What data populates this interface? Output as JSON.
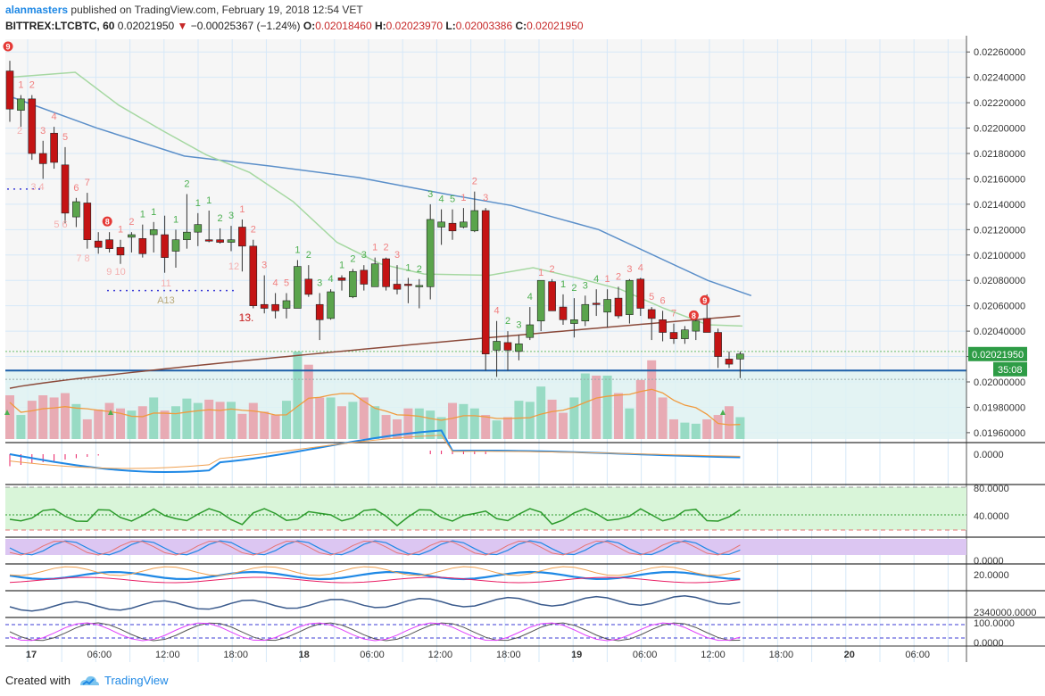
{
  "header": {
    "user": "alanmasters",
    "published_text": "published on TradingView.com, February 19, 2018 12:54 VET",
    "symbol": "BITTREX:LTCBTC, 60",
    "last": "0.02021950",
    "change": "−0.00025367 (−1.24%)",
    "o_label": "O:",
    "o_value": "0.02018460",
    "h_label": "H:",
    "h_value": "0.02023970",
    "l_label": "L:",
    "l_value": "0.02003386",
    "c_label": "C:",
    "c_value": "0.02021950"
  },
  "footer": {
    "created_with": "Created with",
    "brand": "TradingView"
  },
  "colors": {
    "up": "#4caf50",
    "down": "#d32f2f",
    "grid": "#d6e8f8",
    "accent": "#1e88e5",
    "price_badge": "#2e9c46"
  },
  "chart_data": {
    "type": "candlestick",
    "price_axis_ticks": [
      "0.02260000",
      "0.02240000",
      "0.02220000",
      "0.02200000",
      "0.02180000",
      "0.02160000",
      "0.02140000",
      "0.02120000",
      "0.02100000",
      "0.02080000",
      "0.02060000",
      "0.02040000",
      "0.02020000",
      "0.02000000",
      "0.01980000",
      "0.01960000"
    ],
    "y_range": [
      0.01955,
      0.0227
    ],
    "time_axis_ticks": [
      "17",
      "06:00",
      "12:00",
      "18:00",
      "18",
      "06:00",
      "12:00",
      "18:00",
      "19",
      "06:00",
      "12:00",
      "18:00",
      "20",
      "06:00"
    ],
    "current_price_label": "0.02021950",
    "countdown_label": "35:08",
    "support_level": 0.02009,
    "ohlc": [
      [
        0.02245,
        0.02253,
        0.02205,
        0.02215
      ],
      [
        0.02214,
        0.02226,
        0.02201,
        0.02223
      ],
      [
        0.02223,
        0.02226,
        0.02175,
        0.0218
      ],
      [
        0.0218,
        0.0219,
        0.0216,
        0.02172
      ],
      [
        0.02196,
        0.02201,
        0.02168,
        0.02173
      ],
      [
        0.02171,
        0.02185,
        0.02125,
        0.02133
      ],
      [
        0.0213,
        0.02145,
        0.02122,
        0.02142
      ],
      [
        0.02141,
        0.02149,
        0.02105,
        0.02112
      ],
      [
        0.02111,
        0.02118,
        0.02101,
        0.02106
      ],
      [
        0.02112,
        0.02118,
        0.02102,
        0.02105
      ],
      [
        0.02106,
        0.02112,
        0.02093,
        0.021
      ],
      [
        0.02114,
        0.02118,
        0.02102,
        0.02116
      ],
      [
        0.02113,
        0.02124,
        0.02098,
        0.02101
      ],
      [
        0.02116,
        0.02126,
        0.02102,
        0.0212
      ],
      [
        0.02116,
        0.02131,
        0.02086,
        0.02098
      ],
      [
        0.02103,
        0.0212,
        0.0209,
        0.02112
      ],
      [
        0.02112,
        0.02148,
        0.02105,
        0.02118
      ],
      [
        0.02118,
        0.02133,
        0.02107,
        0.02124
      ],
      [
        0.02112,
        0.02135,
        0.0211,
        0.02111
      ],
      [
        0.02112,
        0.02121,
        0.02109,
        0.0211
      ],
      [
        0.0211,
        0.02123,
        0.02103,
        0.02112
      ],
      [
        0.02122,
        0.02128,
        0.02087,
        0.02107
      ],
      [
        0.02107,
        0.02112,
        0.02058,
        0.0206
      ],
      [
        0.02061,
        0.02084,
        0.02054,
        0.02058
      ],
      [
        0.02061,
        0.0207,
        0.0205,
        0.02056
      ],
      [
        0.02058,
        0.0207,
        0.0205,
        0.02064
      ],
      [
        0.02058,
        0.02096,
        0.02058,
        0.02091
      ],
      [
        0.02081,
        0.02092,
        0.02067,
        0.02069
      ],
      [
        0.02061,
        0.0207,
        0.02033,
        0.02049
      ],
      [
        0.0205,
        0.02073,
        0.02049,
        0.02071
      ],
      [
        0.02082,
        0.02084,
        0.02072,
        0.0208
      ],
      [
        0.02067,
        0.02089,
        0.02066,
        0.02087
      ],
      [
        0.02088,
        0.02092,
        0.02072,
        0.02077
      ],
      [
        0.02075,
        0.02098,
        0.02075,
        0.02093
      ],
      [
        0.02097,
        0.02098,
        0.02072,
        0.02075
      ],
      [
        0.02077,
        0.02092,
        0.02069,
        0.02073
      ],
      [
        0.02077,
        0.02082,
        0.02062,
        0.02076
      ],
      [
        0.02075,
        0.02081,
        0.02058,
        0.02076
      ],
      [
        0.02075,
        0.0214,
        0.02065,
        0.02128
      ],
      [
        0.02122,
        0.02136,
        0.02108,
        0.02126
      ],
      [
        0.02125,
        0.02136,
        0.02112,
        0.02119
      ],
      [
        0.02122,
        0.02137,
        0.02121,
        0.02126
      ],
      [
        0.02119,
        0.0215,
        0.02118,
        0.02135
      ],
      [
        0.02135,
        0.02137,
        0.02009,
        0.02022
      ],
      [
        0.02025,
        0.02048,
        0.02004,
        0.02032
      ],
      [
        0.02031,
        0.0204,
        0.02009,
        0.02025
      ],
      [
        0.02024,
        0.02037,
        0.02017,
        0.0203
      ],
      [
        0.02035,
        0.02059,
        0.02033,
        0.02045
      ],
      [
        0.02048,
        0.02078,
        0.0204,
        0.0208
      ],
      [
        0.02079,
        0.02081,
        0.02056,
        0.02056
      ],
      [
        0.02059,
        0.02069,
        0.02045,
        0.02049
      ],
      [
        0.02046,
        0.02066,
        0.02035,
        0.02049
      ],
      [
        0.02048,
        0.02068,
        0.02044,
        0.02061
      ],
      [
        0.02062,
        0.02073,
        0.02052,
        0.02061
      ],
      [
        0.02055,
        0.02073,
        0.02043,
        0.02065
      ],
      [
        0.02066,
        0.02075,
        0.0205,
        0.02052
      ],
      [
        0.02053,
        0.02081,
        0.02046,
        0.0208
      ],
      [
        0.02081,
        0.02082,
        0.02052,
        0.02058
      ],
      [
        0.02057,
        0.02059,
        0.02033,
        0.0205
      ],
      [
        0.02049,
        0.02056,
        0.02032,
        0.02039
      ],
      [
        0.02039,
        0.02046,
        0.0203,
        0.02034
      ],
      [
        0.02034,
        0.02044,
        0.0203,
        0.02041
      ],
      [
        0.0204,
        0.02056,
        0.02033,
        0.02048
      ],
      [
        0.0205,
        0.02069,
        0.02042,
        0.02039
      ],
      [
        0.02039,
        0.02042,
        0.02011,
        0.0202
      ],
      [
        0.02018,
        0.02024,
        0.02011,
        0.02014
      ],
      [
        0.02018,
        0.02024,
        0.02003,
        0.02022
      ]
    ],
    "volume": [
      40,
      22,
      35,
      40,
      38,
      42,
      32,
      18,
      27,
      33,
      28,
      26,
      30,
      38,
      26,
      30,
      37,
      33,
      36,
      34,
      34,
      23,
      33,
      25,
      22,
      35,
      80,
      68,
      38,
      38,
      30,
      34,
      38,
      30,
      22,
      18,
      28,
      28,
      26,
      20,
      33,
      32,
      28,
      22,
      17,
      20,
      35,
      34,
      48,
      36,
      24,
      38,
      60,
      58,
      58,
      42,
      28,
      54,
      72,
      38,
      18,
      15,
      14,
      18,
      22,
      30,
      20
    ],
    "ema_brown_endpoints": [
      0.01995,
      0.02052
    ],
    "ma_blue": [
      [
        0,
        0.02225
      ],
      [
        20,
        0.022
      ],
      [
        40,
        0.02178
      ],
      [
        60,
        0.0217
      ],
      [
        80,
        0.02161
      ],
      [
        100,
        0.02148
      ],
      [
        115,
        0.02139
      ],
      [
        135,
        0.0212
      ],
      [
        160,
        0.0208
      ],
      [
        170,
        0.02068
      ]
    ],
    "ma_green": [
      [
        0,
        0.0224
      ],
      [
        15,
        0.02244
      ],
      [
        25,
        0.02218
      ],
      [
        35,
        0.02198
      ],
      [
        45,
        0.02179
      ],
      [
        55,
        0.02165
      ],
      [
        65,
        0.02142
      ],
      [
        75,
        0.0211
      ],
      [
        85,
        0.02093
      ],
      [
        95,
        0.02085
      ],
      [
        110,
        0.02084
      ],
      [
        120,
        0.0209
      ],
      [
        130,
        0.02082
      ],
      [
        140,
        0.02073
      ],
      [
        150,
        0.02058
      ],
      [
        160,
        0.02045
      ],
      [
        168,
        0.02044
      ]
    ],
    "indicator_axis_labels": [
      [
        "0.0000"
      ],
      [
        "80.0000",
        "40.0000"
      ],
      [
        "0.0000"
      ],
      [
        "20.0000"
      ],
      [
        "2340000.0000"
      ],
      [
        "100.0000",
        "0.0000"
      ]
    ],
    "td_labels": [
      {
        "i": 1,
        "t": "1",
        "c": "#f08080"
      },
      {
        "i": 2,
        "t": "2",
        "c": "#f08080"
      },
      {
        "i": 3,
        "t": "3",
        "c": "#f08080"
      },
      {
        "i": 4,
        "t": "4",
        "c": "#f08080"
      },
      {
        "i": 5,
        "t": "5",
        "c": "#f08080"
      },
      {
        "i": 6,
        "t": "6",
        "c": "#f08080"
      },
      {
        "i": 7,
        "t": "7",
        "c": "#f08080"
      },
      {
        "i": 8,
        "t": "8",
        "c": "#d32f2f"
      },
      {
        "i": 10,
        "t": "1",
        "c": "#f08080"
      },
      {
        "i": 11,
        "t": "2",
        "c": "#f08080"
      },
      {
        "i": 12,
        "t": "1",
        "c": "#4caf50"
      },
      {
        "i": 13,
        "t": "1",
        "c": "#4caf50"
      },
      {
        "i": 15,
        "t": "1",
        "c": "#4caf50"
      },
      {
        "i": 16,
        "t": "2",
        "c": "#4caf50"
      },
      {
        "i": 17,
        "t": "1",
        "c": "#4caf50"
      },
      {
        "i": 18,
        "t": "1",
        "c": "#4caf50"
      },
      {
        "i": 19,
        "t": "2",
        "c": "#4caf50"
      },
      {
        "i": 20,
        "t": "3",
        "c": "#4caf50"
      },
      {
        "i": 21,
        "t": "1",
        "c": "#f08080"
      },
      {
        "i": 22,
        "t": "2",
        "c": "#f08080"
      },
      {
        "i": 23,
        "t": "3",
        "c": "#f08080"
      },
      {
        "i": 24,
        "t": "4",
        "c": "#f08080"
      },
      {
        "i": 25,
        "t": "5",
        "c": "#f08080"
      },
      {
        "i": 26,
        "t": "1",
        "c": "#4caf50"
      },
      {
        "i": 27,
        "t": "2",
        "c": "#4caf50"
      },
      {
        "i": 28,
        "t": "3",
        "c": "#4caf50"
      },
      {
        "i": 29,
        "t": "4",
        "c": "#4caf50"
      },
      {
        "i": 30,
        "t": "1",
        "c": "#4caf50"
      },
      {
        "i": 31,
        "t": "2",
        "c": "#4caf50"
      },
      {
        "i": 32,
        "t": "3",
        "c": "#4caf50"
      },
      {
        "i": 33,
        "t": "1",
        "c": "#f08080"
      },
      {
        "i": 34,
        "t": "2",
        "c": "#f08080"
      },
      {
        "i": 35,
        "t": "3",
        "c": "#f08080"
      },
      {
        "i": 36,
        "t": "1",
        "c": "#4caf50"
      },
      {
        "i": 37,
        "t": "2",
        "c": "#4caf50"
      },
      {
        "i": 38,
        "t": "3",
        "c": "#4caf50"
      },
      {
        "i": 39,
        "t": "4",
        "c": "#4caf50"
      },
      {
        "i": 40,
        "t": "5",
        "c": "#4caf50"
      },
      {
        "i": 41,
        "t": "1",
        "c": "#f08080"
      },
      {
        "i": 42,
        "t": "2",
        "c": "#f08080"
      },
      {
        "i": 43,
        "t": "3",
        "c": "#f08080"
      },
      {
        "i": 44,
        "t": "4",
        "c": "#f08080"
      },
      {
        "i": 45,
        "t": "2",
        "c": "#4caf50"
      },
      {
        "i": 46,
        "t": "3",
        "c": "#4caf50"
      },
      {
        "i": 47,
        "t": "4",
        "c": "#4caf50"
      },
      {
        "i": 48,
        "t": "1",
        "c": "#f08080"
      },
      {
        "i": 49,
        "t": "2",
        "c": "#f08080"
      },
      {
        "i": 50,
        "t": "1",
        "c": "#4caf50"
      },
      {
        "i": 51,
        "t": "2",
        "c": "#4caf50"
      },
      {
        "i": 52,
        "t": "3",
        "c": "#4caf50"
      },
      {
        "i": 53,
        "t": "4",
        "c": "#4caf50"
      },
      {
        "i": 54,
        "t": "1",
        "c": "#f08080"
      },
      {
        "i": 55,
        "t": "2",
        "c": "#f08080"
      },
      {
        "i": 56,
        "t": "3",
        "c": "#f08080"
      },
      {
        "i": 57,
        "t": "4",
        "c": "#f08080"
      },
      {
        "i": 58,
        "t": "5",
        "c": "#f08080"
      },
      {
        "i": 59,
        "t": "6",
        "c": "#f08080"
      },
      {
        "i": 60,
        "t": "7",
        "c": "#f08080"
      },
      {
        "i": 61,
        "t": "8",
        "c": "#d32f2f"
      },
      {
        "i": 62,
        "t": "9",
        "c": "#d32f2f"
      }
    ],
    "td_sub_labels": [
      "2",
      "3 4",
      "5 6",
      "7 8",
      "9 10",
      "11",
      "A13",
      "12",
      "13"
    ]
  }
}
